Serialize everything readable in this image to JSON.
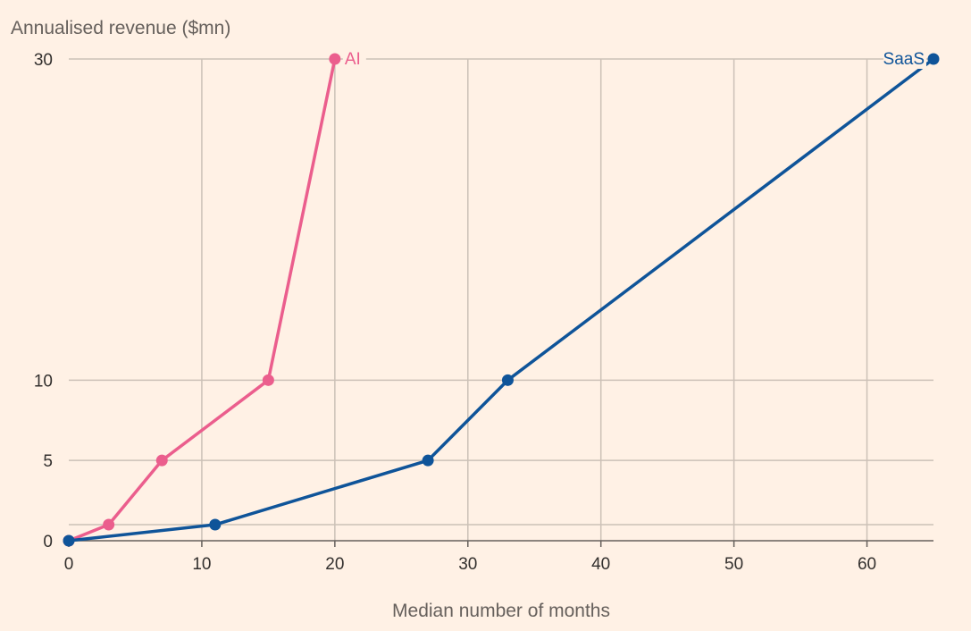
{
  "chart_data": {
    "type": "line",
    "title": "",
    "ylabel": "Annualised revenue ($mn)",
    "xlabel": "Median number of months",
    "xlim": [
      0,
      65
    ],
    "ylim": [
      0,
      30
    ],
    "x_ticks": [
      0,
      10,
      20,
      30,
      40,
      50,
      60
    ],
    "x_tick_labels": [
      "0",
      "10",
      "20",
      "30",
      "40",
      "50",
      "60"
    ],
    "y_ticks": [
      0,
      5,
      10,
      30
    ],
    "y_tick_labels": [
      "0",
      "5",
      "10",
      "30"
    ],
    "y_gridlines": [
      1,
      5,
      10,
      30
    ],
    "grid": true,
    "legend": "inline labels at series ends",
    "series": [
      {
        "name": "AI",
        "color": "#EB5E8D",
        "points": [
          {
            "x": 0,
            "y": 0
          },
          {
            "x": 3,
            "y": 1
          },
          {
            "x": 7,
            "y": 5
          },
          {
            "x": 15,
            "y": 10
          },
          {
            "x": 20,
            "y": 30
          }
        ]
      },
      {
        "name": "SaaS",
        "color": "#0F5499",
        "points": [
          {
            "x": 0,
            "y": 0
          },
          {
            "x": 11,
            "y": 1
          },
          {
            "x": 27,
            "y": 5
          },
          {
            "x": 33,
            "y": 10
          },
          {
            "x": 65,
            "y": 30
          }
        ]
      }
    ]
  }
}
